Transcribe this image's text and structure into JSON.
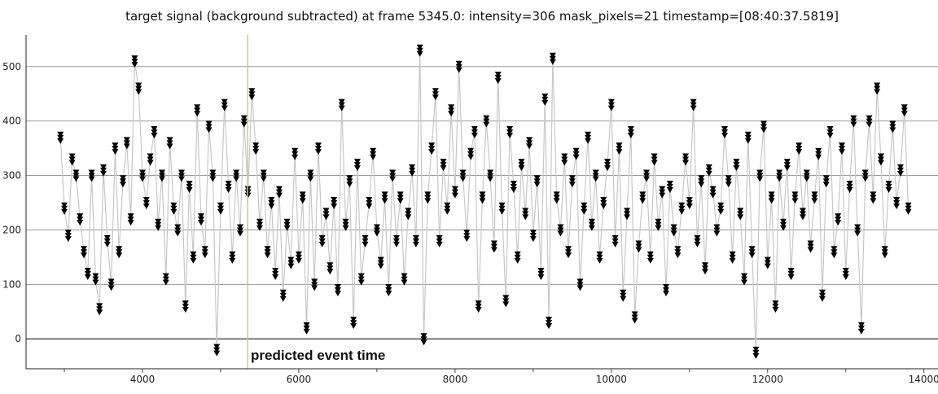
{
  "chart_data": {
    "type": "line",
    "title": "target signal (background subtracted) at frame 5345.0: intensity=306 mask_pixels=21 timestamp=[08:40:37.5819]",
    "xlabel": "",
    "ylabel": "",
    "xlim": [
      2510,
      14180
    ],
    "ylim": [
      -55,
      558
    ],
    "x_ticks": [
      4000,
      6000,
      8000,
      10000,
      12000,
      14000
    ],
    "x_minor_ticks": [
      3000,
      5000,
      7000,
      9000,
      11000,
      13000
    ],
    "y_ticks": [
      0,
      100,
      200,
      300,
      400,
      500
    ],
    "grid": "horizontal",
    "marker": "triangle-down",
    "colors": {
      "marker": "#000000",
      "line": "#c8c8c8",
      "grid": "#9a9a9a",
      "zero_line": "#000000",
      "event_line": "#c8cc8a"
    },
    "event_marker": {
      "x": 5345,
      "label": "predicted event time"
    },
    "series": [
      {
        "x_start": 2950,
        "x_step": 50,
        "values": [
          370,
          240,
          190,
          330,
          300,
          220,
          160,
          120,
          300,
          110,
          55,
          310,
          180,
          100,
          350,
          160,
          290,
          360,
          220,
          510,
          460,
          300,
          250,
          330,
          380,
          210,
          300,
          110,
          360,
          240,
          200,
          300,
          60,
          280,
          150,
          420,
          220,
          160,
          390,
          300,
          -20,
          240,
          430,
          280,
          150,
          300,
          200,
          400,
          270,
          450,
          350,
          210,
          300,
          160,
          250,
          120,
          270,
          80,
          210,
          140,
          340,
          150,
          260,
          20,
          300,
          100,
          350,
          180,
          230,
          130,
          250,
          90,
          430,
          210,
          290,
          30,
          320,
          110,
          180,
          250,
          340,
          200,
          140,
          260,
          90,
          300,
          180,
          260,
          110,
          230,
          310,
          180,
          530,
          0,
          260,
          350,
          450,
          180,
          320,
          240,
          420,
          270,
          500,
          300,
          190,
          340,
          380,
          60,
          260,
          400,
          300,
          170,
          480,
          240,
          70,
          380,
          280,
          150,
          320,
          230,
          360,
          190,
          290,
          120,
          440,
          30,
          515,
          260,
          200,
          330,
          160,
          290,
          340,
          100,
          240,
          370,
          210,
          300,
          150,
          250,
          320,
          430,
          180,
          350,
          80,
          230,
          380,
          40,
          170,
          260,
          300,
          150,
          330,
          210,
          270,
          90,
          280,
          200,
          160,
          240,
          330,
          250,
          430,
          180,
          290,
          130,
          310,
          270,
          200,
          240,
          380,
          290,
          150,
          320,
          230,
          110,
          370,
          160,
          -25,
          300,
          390,
          140,
          260,
          60,
          300,
          210,
          320,
          120,
          260,
          350,
          230,
          300,
          170,
          260,
          340,
          80,
          290,
          380,
          160,
          220,
          350,
          120,
          280,
          400,
          200,
          20,
          300,
          400,
          260,
          460,
          330,
          160,
          280,
          390,
          250,
          310,
          420,
          240
        ]
      }
    ]
  }
}
